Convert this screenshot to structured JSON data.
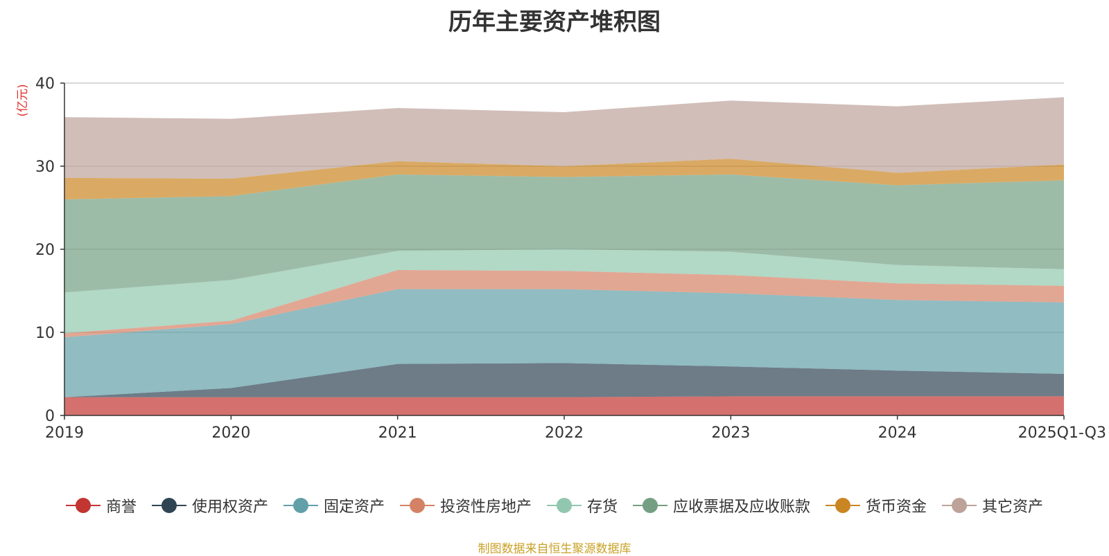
{
  "chart_data": {
    "type": "area",
    "stacked": true,
    "title": "历年主要资产堆积图",
    "ylabel": "(亿元)",
    "xlabel": "",
    "categories": [
      "2019",
      "2020",
      "2021",
      "2022",
      "2023",
      "2024",
      "2025Q1-Q3"
    ],
    "ylim": [
      0,
      40
    ],
    "yticks": [
      "0",
      "10",
      "20",
      "30",
      "40"
    ],
    "grid": true,
    "legend_position": "bottom",
    "series": [
      {
        "name": "商誉",
        "color": "#c23531",
        "values": [
          2.2,
          2.2,
          2.2,
          2.2,
          2.3,
          2.3,
          2.3
        ]
      },
      {
        "name": "使用权资产",
        "color": "#2f4554",
        "values": [
          0.0,
          1.1,
          4.0,
          4.1,
          3.6,
          3.1,
          2.7
        ]
      },
      {
        "name": "固定资产",
        "color": "#61a0a8",
        "values": [
          7.2,
          7.7,
          9.0,
          8.9,
          8.8,
          8.5,
          8.6
        ]
      },
      {
        "name": "投资性房地产",
        "color": "#d48265",
        "values": [
          0.5,
          0.4,
          2.3,
          2.2,
          2.2,
          2.0,
          2.0
        ]
      },
      {
        "name": "存货",
        "color": "#91c7ae",
        "values": [
          4.9,
          4.9,
          2.3,
          2.6,
          2.8,
          2.2,
          2.0
        ]
      },
      {
        "name": "应收票据及应收账款",
        "color": "#749f83",
        "values": [
          11.2,
          10.1,
          9.2,
          8.7,
          9.3,
          9.6,
          10.7
        ]
      },
      {
        "name": "货币资金",
        "color": "#ca8622",
        "values": [
          2.6,
          2.1,
          1.6,
          1.3,
          1.9,
          1.5,
          1.9
        ]
      },
      {
        "name": "其它资产",
        "color": "#bda29a",
        "values": [
          7.3,
          7.2,
          6.4,
          6.5,
          7.0,
          8.0,
          8.1
        ]
      }
    ]
  },
  "source_note": "制图数据来自恒生聚源数据库"
}
